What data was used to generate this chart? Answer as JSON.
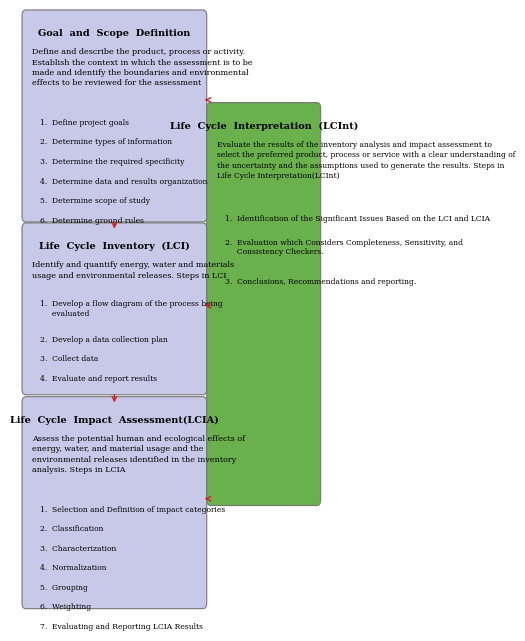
{
  "background_color": "#ffffff",
  "left_boxes": [
    {
      "title": "Goal  and  Scope  Definition",
      "description": "Define and describe the product, process or activity.\nEstablish the context in which the assessment is to be\nmade and identify the boundaries and environmental\neffects to be reviewed for the assessment",
      "items": [
        "1.  Define project goals",
        "2.  Determine types of information",
        "3.  Determine the required specificity",
        "4.  Determine data and results organization",
        "5.  Determine scope of study",
        "6.  Determine ground rules"
      ],
      "box_color": "#c8c8e8",
      "title_color": "#000000",
      "text_color": "#000000"
    },
    {
      "title": "Life  Cycle  Inventory  (LCI)",
      "description": "Identify and quantify energy, water and materials\nusage and environmental releases. Steps in LCI",
      "items": [
        "1.  Develop a flow diagram of the process being\n     evaluated",
        "2.  Develop a data collection plan",
        "3.  Collect data",
        "4.  Evaluate and report results"
      ],
      "box_color": "#c8c8e8",
      "title_color": "#000000",
      "text_color": "#000000"
    },
    {
      "title": "Life  Cycle  Impact  Assessment(LCIA)",
      "description": "Assess the potential human and ecological effects of\nenergy, water, and material usage and the\nenvironmental releases identified in the inventory\nanalysis. Steps in LCIA",
      "items": [
        "1.  Selection and Definition of impact categories",
        "2.  Classification",
        "3.  Characterization",
        "4.  Normalization",
        "5.  Grouping",
        "6.  Weighting",
        "7.  Evaluating and Reporting LCIA Results"
      ],
      "box_color": "#c8c8e8",
      "title_color": "#000000",
      "text_color": "#000000"
    }
  ],
  "right_box": {
    "title": "Life  Cycle  Interpretation  (LCInt)",
    "description": "Evaluate the results of the inventory analysis and impact assessment to\nselect the preferred product, process or service with a clear understanding of\nthe uncertainty and the assumptions used to generate the results. Steps in\nLife Cycle Interpretation(LCInt)",
    "items": [
      "1.  Identification of the Significant Issues Based on the LCI and LCIA",
      "2.  Evaluation which Considers Completeness, Sensitivity, and\n     Consistency Checkers.",
      "3.  Conclusions, Recommendations and reporting."
    ],
    "box_color": "#6ab04c",
    "title_color": "#000000",
    "text_color": "#000000"
  },
  "arrow_color": "#cc2222"
}
